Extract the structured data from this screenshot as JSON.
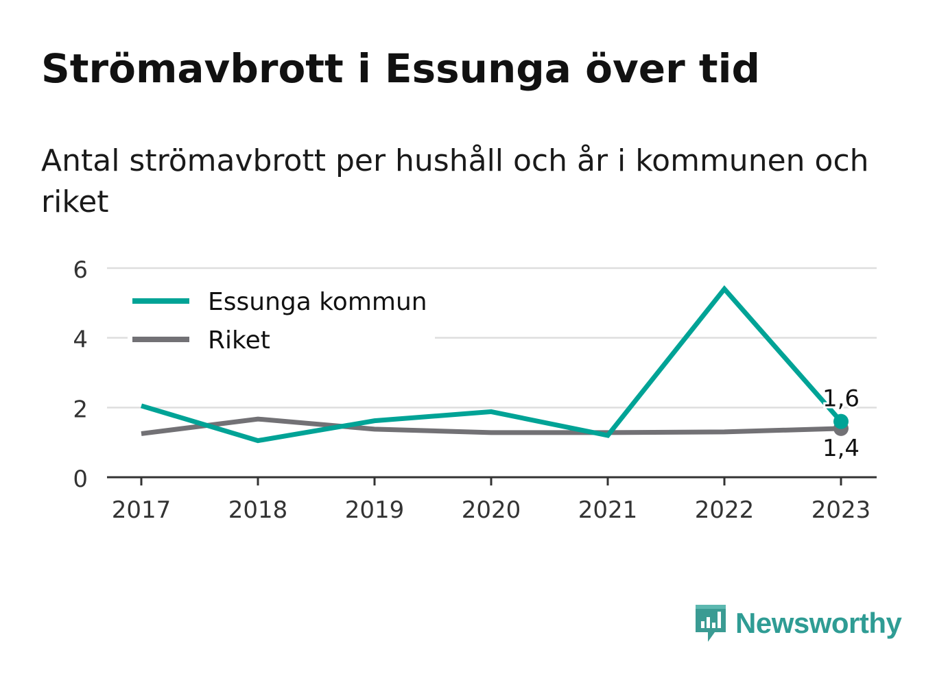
{
  "header": {
    "title": "Strömavbrott i Essunga över tid",
    "subtitle": "Antal strömavbrott per hushåll och år i kommunen och riket"
  },
  "chart_data": {
    "type": "line",
    "categories": [
      "2017",
      "2018",
      "2019",
      "2020",
      "2021",
      "2022",
      "2023"
    ],
    "series": [
      {
        "name": "Essunga kommun",
        "color": "#00a396",
        "values": [
          2.05,
          1.05,
          1.62,
          1.88,
          1.2,
          5.4,
          1.6
        ],
        "end_label": "1,6"
      },
      {
        "name": "Riket",
        "color": "#727175",
        "values": [
          1.25,
          1.67,
          1.38,
          1.28,
          1.28,
          1.3,
          1.4
        ],
        "end_label": "1,4"
      }
    ],
    "y_ticks": [
      "0",
      "2",
      "4",
      "6"
    ],
    "ylim": [
      0,
      6
    ],
    "grid": true,
    "legend_position": "top-left"
  },
  "branding": {
    "name": "Newsworthy",
    "color": "#2f9c94"
  }
}
